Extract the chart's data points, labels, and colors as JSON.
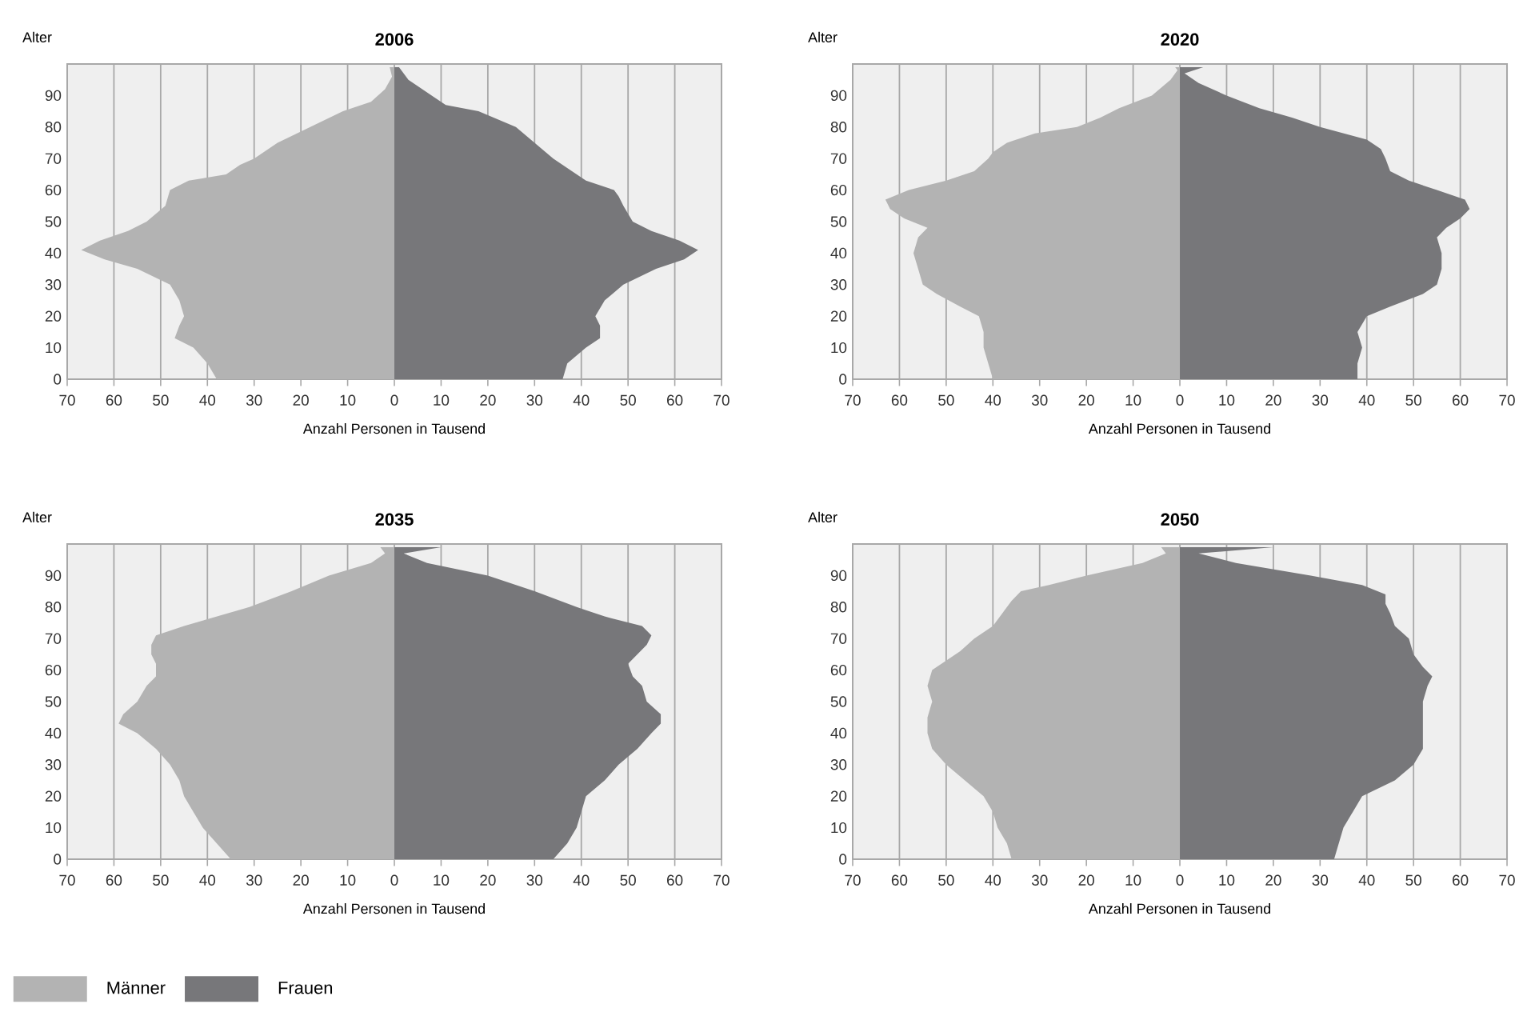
{
  "chart_data": [
    {
      "type": "area",
      "orientation": "horizontal",
      "title": "2006",
      "xlabel": "Anzahl Personen in Tausend",
      "ylabel": "Alter",
      "grid": "x",
      "ylim": [
        0,
        100
      ],
      "yticks": [
        0,
        10,
        20,
        30,
        40,
        50,
        60,
        70,
        80,
        90
      ],
      "xlim": [
        -70,
        70
      ],
      "xticks": [
        {
          "value": -70,
          "label": "70"
        },
        {
          "value": -60,
          "label": "60"
        },
        {
          "value": -50,
          "label": "50"
        },
        {
          "value": -40,
          "label": "40"
        },
        {
          "value": -30,
          "label": "30"
        },
        {
          "value": -20,
          "label": "20"
        },
        {
          "value": -10,
          "label": "10"
        },
        0,
        10,
        20,
        30,
        40,
        50,
        60,
        70
      ],
      "series": [
        {
          "color": "#b3b3b3",
          "x": [
            0,
            5,
            10,
            13,
            17,
            20,
            25,
            30,
            35,
            38,
            41,
            44,
            47,
            50,
            55,
            60,
            63,
            65,
            68,
            70,
            75,
            80,
            85,
            88,
            92,
            96,
            99
          ],
          "values": [
            -38,
            -40,
            -43,
            -47,
            -46,
            -45,
            -46,
            -48,
            -55,
            -62,
            -67,
            -63,
            -57,
            -53,
            -49,
            -48,
            -44,
            -36,
            -33,
            -30,
            -25,
            -18,
            -11,
            -5,
            -2,
            -0.5,
            -1
          ]
        },
        {
          "color": "#77777a",
          "x": [
            0,
            5,
            10,
            13,
            17,
            20,
            25,
            30,
            35,
            38,
            41,
            44,
            47,
            50,
            55,
            58,
            60,
            63,
            66,
            70,
            75,
            80,
            85,
            87,
            90,
            95,
            99
          ],
          "values": [
            36,
            37,
            41,
            44,
            44,
            43,
            45,
            49,
            56,
            62,
            65,
            61,
            55,
            51,
            49,
            48,
            47,
            41,
            38,
            34,
            30,
            26,
            18,
            11,
            8,
            3,
            1
          ]
        }
      ]
    },
    {
      "type": "area",
      "orientation": "horizontal",
      "title": "2020",
      "xlabel": "Anzahl Personen in Tausend",
      "ylabel": "Alter",
      "grid": "x",
      "ylim": [
        0,
        100
      ],
      "yticks": [
        0,
        10,
        20,
        30,
        40,
        50,
        60,
        70,
        80,
        90
      ],
      "xlim": [
        -70,
        70
      ],
      "xticks": [
        {
          "value": -70,
          "label": "70"
        },
        {
          "value": -60,
          "label": "60"
        },
        {
          "value": -50,
          "label": "50"
        },
        {
          "value": -40,
          "label": "40"
        },
        {
          "value": -30,
          "label": "30"
        },
        {
          "value": -20,
          "label": "20"
        },
        {
          "value": -10,
          "label": "10"
        },
        0,
        10,
        20,
        30,
        40,
        50,
        60,
        70
      ],
      "series": [
        {
          "color": "#b3b3b3",
          "x": [
            0,
            5,
            10,
            15,
            20,
            23,
            27,
            30,
            35,
            40,
            45,
            48,
            51,
            54,
            57,
            60,
            63,
            66,
            70,
            72,
            75,
            78,
            80,
            83,
            86,
            90,
            95,
            98,
            99
          ],
          "values": [
            -40,
            -41,
            -42,
            -42,
            -43,
            -47,
            -52,
            -55,
            -56,
            -57,
            -56,
            -54,
            -59,
            -62,
            -63,
            -58,
            -50,
            -44,
            -41,
            -40,
            -37,
            -31,
            -22,
            -17,
            -13,
            -6,
            -2,
            -0.5,
            -1
          ]
        },
        {
          "color": "#77777a",
          "x": [
            0,
            5,
            10,
            15,
            20,
            23,
            27,
            30,
            35,
            40,
            45,
            48,
            51,
            54,
            57,
            60,
            63,
            66,
            70,
            73,
            76,
            80,
            83,
            86,
            90,
            94,
            97,
            99
          ],
          "values": [
            38,
            38,
            39,
            38,
            40,
            45,
            52,
            55,
            56,
            56,
            55,
            57,
            60,
            62,
            61,
            55,
            49,
            45,
            44,
            43,
            40,
            30,
            24,
            17,
            10,
            4,
            1,
            5
          ]
        }
      ]
    },
    {
      "type": "area",
      "orientation": "horizontal",
      "title": "2035",
      "xlabel": "Anzahl Personen in Tausend",
      "ylabel": "Alter",
      "grid": "x",
      "legend": "bottom left",
      "ylim": [
        0,
        100
      ],
      "yticks": [
        0,
        10,
        20,
        30,
        40,
        50,
        60,
        70,
        80,
        90
      ],
      "xlim": [
        -70,
        70
      ],
      "xticks": [
        {
          "value": -70,
          "label": "70"
        },
        {
          "value": -60,
          "label": "60"
        },
        {
          "value": -50,
          "label": "50"
        },
        {
          "value": -40,
          "label": "40"
        },
        {
          "value": -30,
          "label": "30"
        },
        {
          "value": -20,
          "label": "20"
        },
        {
          "value": -10,
          "label": "10"
        },
        0,
        10,
        20,
        30,
        40,
        50,
        60,
        70
      ],
      "series": [
        {
          "name": "Männer",
          "color": "#b3b3b3",
          "x": [
            0,
            5,
            10,
            15,
            20,
            25,
            30,
            35,
            40,
            43,
            46,
            50,
            55,
            58,
            62,
            65,
            68,
            71,
            74,
            77,
            80,
            85,
            90,
            94,
            97,
            99
          ],
          "values": [
            -35,
            -38,
            -41,
            -43,
            -45,
            -46,
            -48,
            -51,
            -55,
            -59,
            -58,
            -55,
            -53,
            -51,
            -51,
            -52,
            -52,
            -51,
            -45,
            -38,
            -31,
            -22,
            -14,
            -5,
            -2,
            -3
          ]
        },
        {
          "name": "Frauen",
          "color": "#77777a",
          "x": [
            0,
            5,
            10,
            15,
            20,
            25,
            30,
            35,
            40,
            43,
            46,
            50,
            55,
            58,
            62,
            65,
            68,
            71,
            74,
            77,
            80,
            85,
            90,
            94,
            97,
            99
          ],
          "values": [
            34,
            37,
            39,
            40,
            41,
            45,
            48,
            52,
            55,
            57,
            57,
            54,
            53,
            51,
            50,
            52,
            54,
            55,
            53,
            45,
            39,
            30,
            20,
            7,
            2,
            10
          ]
        }
      ]
    },
    {
      "type": "area",
      "orientation": "horizontal",
      "title": "2050",
      "xlabel": "Anzahl Personen in Tausend",
      "ylabel": "Alter",
      "grid": "x",
      "ylim": [
        0,
        100
      ],
      "yticks": [
        0,
        10,
        20,
        30,
        40,
        50,
        60,
        70,
        80,
        90
      ],
      "xlim": [
        -70,
        70
      ],
      "xticks": [
        {
          "value": -70,
          "label": "70"
        },
        {
          "value": -60,
          "label": "60"
        },
        {
          "value": -50,
          "label": "50"
        },
        {
          "value": -40,
          "label": "40"
        },
        {
          "value": -30,
          "label": "30"
        },
        {
          "value": -20,
          "label": "20"
        },
        {
          "value": -10,
          "label": "10"
        },
        0,
        10,
        20,
        30,
        40,
        50,
        60,
        70
      ],
      "series": [
        {
          "color": "#b3b3b3",
          "x": [
            0,
            5,
            10,
            15,
            20,
            25,
            30,
            35,
            40,
            45,
            50,
            55,
            60,
            63,
            66,
            70,
            74,
            78,
            82,
            85,
            87,
            90,
            94,
            97,
            99
          ],
          "values": [
            -36,
            -37,
            -39,
            -40,
            -42,
            -46,
            -50,
            -53,
            -54,
            -54,
            -53,
            -54,
            -53,
            -50,
            -47,
            -44,
            -40,
            -38,
            -36,
            -34,
            -28,
            -20,
            -8,
            -3,
            -4
          ]
        },
        {
          "color": "#77777a",
          "x": [
            0,
            5,
            10,
            15,
            20,
            25,
            30,
            35,
            40,
            45,
            50,
            55,
            58,
            61,
            65,
            70,
            74,
            78,
            81,
            84,
            87,
            90,
            94,
            97,
            99
          ],
          "values": [
            33,
            34,
            35,
            37,
            39,
            46,
            50,
            52,
            52,
            52,
            52,
            53,
            54,
            52,
            50,
            49,
            46,
            45,
            44,
            44,
            39,
            28,
            12,
            4,
            20
          ]
        }
      ]
    }
  ]
}
